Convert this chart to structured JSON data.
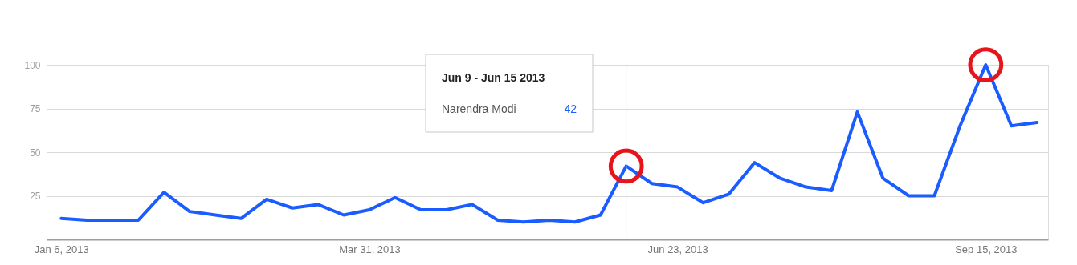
{
  "chart_data": {
    "type": "line",
    "x": [
      "2013-01-06",
      "2013-01-13",
      "2013-01-20",
      "2013-01-27",
      "2013-02-03",
      "2013-02-10",
      "2013-02-17",
      "2013-02-24",
      "2013-03-03",
      "2013-03-10",
      "2013-03-17",
      "2013-03-24",
      "2013-03-31",
      "2013-04-07",
      "2013-04-14",
      "2013-04-21",
      "2013-04-28",
      "2013-05-05",
      "2013-05-12",
      "2013-05-19",
      "2013-05-26",
      "2013-06-02",
      "2013-06-09",
      "2013-06-16",
      "2013-06-23",
      "2013-06-30",
      "2013-07-07",
      "2013-07-14",
      "2013-07-21",
      "2013-07-28",
      "2013-08-04",
      "2013-08-11",
      "2013-08-18",
      "2013-08-25",
      "2013-09-01",
      "2013-09-08",
      "2013-09-15",
      "2013-09-22",
      "2013-09-29"
    ],
    "series": [
      {
        "name": "Narendra Modi",
        "color": "#1a5cff",
        "values": [
          12,
          11,
          11,
          11,
          27,
          16,
          14,
          12,
          23,
          18,
          20,
          14,
          17,
          24,
          17,
          17,
          20,
          11,
          10,
          11,
          10,
          14,
          42,
          32,
          30,
          21,
          26,
          44,
          35,
          30,
          28,
          73,
          35,
          25,
          25,
          65,
          100,
          65,
          67
        ]
      },
      {
        "type": "scatter",
        "color": "#e8141c",
        "values": [
          null,
          null,
          null,
          null,
          null,
          null,
          null,
          null,
          null,
          null,
          null,
          null,
          null,
          null,
          null,
          null,
          null,
          null,
          null,
          null,
          null,
          null,
          42,
          null,
          null,
          null,
          null,
          null,
          null,
          null,
          null,
          null,
          null,
          null,
          null,
          null,
          100,
          null,
          null
        ]
      }
    ],
    "xlim": [
      "2013-01-02",
      "2013-10-02"
    ],
    "xticks": [
      {
        "value": "2013-01-06",
        "label": "Jan 6, 2013"
      },
      {
        "value": "2013-03-31",
        "label": "Mar 31, 2013"
      },
      {
        "value": "2013-06-23",
        "label": "Jun 23, 2013"
      },
      {
        "value": "2013-09-15",
        "label": "Sep 15, 2013"
      }
    ],
    "ylim": [
      0,
      100
    ],
    "yticks": [
      25,
      50,
      75,
      100
    ],
    "grid": "y",
    "ref_lines": [
      {
        "axis": "x",
        "value": "2013-06-09",
        "label": null,
        "color": "#e6e6e6"
      }
    ],
    "annotations": [
      "Jun 9 - Jun 15 2013",
      "42"
    ]
  }
}
